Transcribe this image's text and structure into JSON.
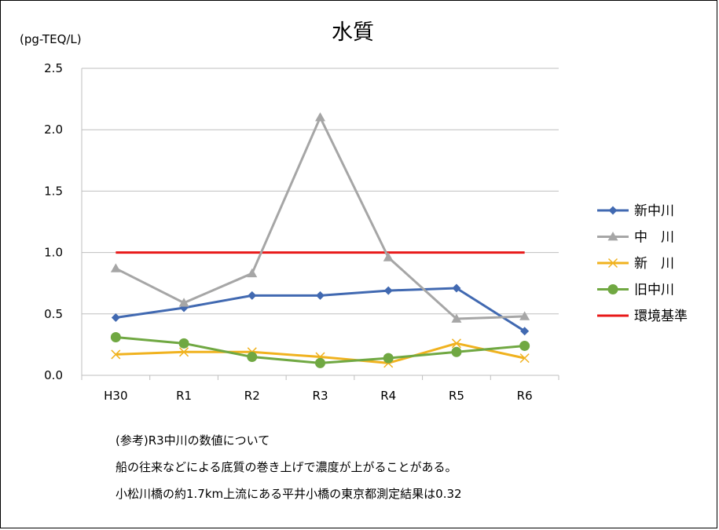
{
  "chart_data": {
    "type": "line",
    "title": "水質",
    "ylabel": "(pg-TEQ/L)",
    "ylim": [
      0,
      2.5
    ],
    "yticks": [
      "0.0",
      "0.5",
      "1.0",
      "1.5",
      "2.0",
      "2.5"
    ],
    "categories": [
      "H30",
      "R1",
      "R2",
      "R3",
      "R4",
      "R5",
      "R6"
    ],
    "grid": true,
    "legend_position": "right",
    "series": [
      {
        "name": "新中川",
        "color": "#4169b1",
        "marker": "diamond",
        "values": [
          0.47,
          0.55,
          0.65,
          0.65,
          0.69,
          0.71,
          0.36
        ]
      },
      {
        "name": "中　川",
        "color": "#a6a6a6",
        "marker": "triangle",
        "values": [
          0.87,
          0.59,
          0.83,
          2.1,
          0.96,
          0.46,
          0.48
        ]
      },
      {
        "name": "新　川",
        "color": "#f0b21f",
        "marker": "x",
        "values": [
          0.17,
          0.19,
          0.19,
          0.15,
          0.1,
          0.26,
          0.14
        ]
      },
      {
        "name": "旧中川",
        "color": "#70a842",
        "marker": "circle",
        "values": [
          0.31,
          0.26,
          0.15,
          0.1,
          0.14,
          0.19,
          0.24
        ]
      },
      {
        "name": "環境基準",
        "color": "#e81919",
        "marker": "none",
        "values": [
          1.0,
          1.0,
          1.0,
          1.0,
          1.0,
          1.0,
          1.0
        ]
      }
    ]
  },
  "notes": [
    "(参考)R3中川の数値について",
    "船の往来などによる底質の巻き上げで濃度が上がることがある。",
    "小松川橋の約1.7km上流にある平井小橋の東京都測定結果は0.32"
  ]
}
